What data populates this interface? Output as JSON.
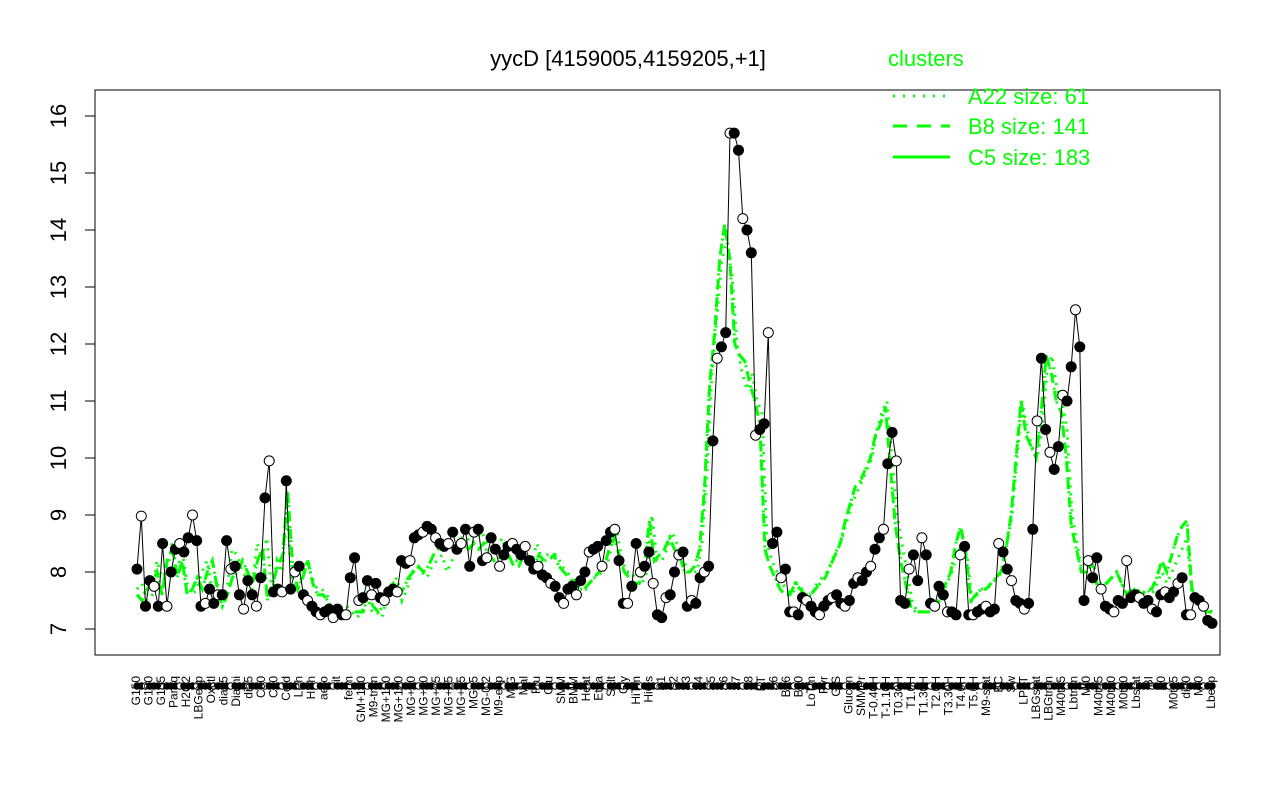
{
  "chart_data": {
    "type": "line",
    "title": "yycD [4159005,4159205,+1]",
    "xlabel": "",
    "ylabel": "",
    "ylim": [
      7,
      16
    ],
    "yticks": [
      7,
      8,
      9,
      10,
      11,
      12,
      13,
      14,
      15,
      16
    ],
    "grid": false,
    "legend": {
      "title": "clusters",
      "placement": "top-right",
      "color": "#00ff00",
      "entries": [
        {
          "label": "A22 size: 61",
          "style": "dotted"
        },
        {
          "label": "B8 size: 141",
          "style": "dashed"
        },
        {
          "label": "C5 size: 183",
          "style": "solid"
        }
      ]
    },
    "x_tick_labels": [
      "G150",
      "G180",
      "G135",
      "Paraq",
      "H2O2",
      "LBGexp",
      "Oxctl",
      "dia15",
      "Diami",
      "dia5",
      "C90",
      "C30",
      "Cold",
      "LPh",
      "HPh",
      "aero",
      "nit",
      "ferm",
      "GM+150",
      "M9-tran",
      "MG+150",
      "MG+120",
      "MG+90",
      "MG+60",
      "MG+45",
      "MG+25",
      "MG+15",
      "MG+5",
      "MG-0.2",
      "M9-exp",
      "M/G",
      "Mal",
      "Fru",
      "Glu",
      "SMM",
      "BMM",
      "Heat",
      "Etha",
      "Salt",
      "Gly",
      "HiTm",
      "HiOs",
      "S1",
      "S2",
      "S3",
      "S4",
      "S5",
      "S6",
      "S7",
      "S8",
      "BT",
      "S6",
      "B36",
      "B60",
      "LoTm",
      "Pyr",
      "G/S",
      "Glucon",
      "SMMPr",
      "T-0.40H",
      "T-1.10H",
      "T0.30H",
      "T1.0H",
      "T1.30H",
      "T2.0H",
      "T3.30H",
      "T4.0H",
      "T5.0H",
      "M9-stat",
      "BC",
      "Sw",
      "LPhT",
      "LBGstat",
      "LBGtran",
      "M40t45",
      "Lbtran",
      "Mt0",
      "M40t45",
      "M40t90",
      "M0t90",
      "Lbstat",
      "BI",
      "S0",
      "M0t45",
      "dia0",
      "Mt0",
      "Lbexp"
    ],
    "series": [
      {
        "name": "",
        "values": [
          8.05,
          8.98,
          7.4,
          7.85,
          7.75,
          7.4,
          8.5,
          7.4,
          8.0,
          8.4,
          8.5,
          8.35,
          8.6,
          9.0,
          8.55,
          7.4,
          7.45,
          7.7,
          7.45,
          7.6,
          7.6,
          8.55,
          8.05,
          8.1,
          7.6,
          7.35,
          7.85,
          7.6,
          7.4,
          7.9,
          9.3,
          9.95,
          7.65,
          7.7,
          7.65,
          9.6,
          7.7,
          8.0,
          8.1,
          7.6,
          7.5,
          7.4,
          7.3,
          7.25,
          7.3,
          7.35,
          7.2,
          7.35,
          7.25,
          7.25,
          7.9,
          8.25,
          7.5,
          7.55,
          7.85,
          7.6,
          7.8,
          7.55,
          7.5,
          7.65,
          7.7,
          7.65,
          8.2,
          8.15,
          8.2,
          8.6,
          8.65,
          8.7,
          8.8,
          8.75,
          8.6,
          8.5,
          8.45,
          8.5,
          8.7,
          8.4,
          8.5,
          8.75,
          8.1,
          8.7,
          8.75,
          8.2,
          8.25,
          8.6,
          8.4,
          8.1,
          8.3,
          8.45,
          8.5,
          8.4,
          8.3,
          8.45,
          8.2,
          8.05,
          8.1,
          7.95,
          7.9,
          7.8,
          7.75,
          7.55,
          7.45,
          7.7,
          7.75,
          7.6,
          7.85,
          8.0,
          8.35,
          8.4,
          8.45,
          8.1,
          8.55,
          8.7,
          8.75,
          8.2,
          7.45,
          7.45,
          7.75,
          8.5,
          8.0,
          8.1,
          8.35,
          7.8,
          7.25,
          7.2,
          7.55,
          7.6,
          8.0,
          8.3,
          8.35,
          7.4,
          7.5,
          7.45,
          7.9,
          8.0,
          8.1,
          10.3,
          11.75,
          11.95,
          12.2,
          15.7,
          15.7,
          15.4,
          14.2,
          14.0,
          13.6,
          10.4,
          10.5,
          10.6,
          12.2,
          8.5,
          8.7,
          7.9,
          8.05,
          7.3,
          7.3,
          7.25,
          7.55,
          7.5,
          7.4,
          7.3,
          7.25,
          7.4,
          7.5,
          7.55,
          7.6,
          7.45,
          7.4,
          7.5,
          7.8,
          7.9,
          7.85,
          8.0,
          8.1,
          8.4,
          8.6,
          8.75,
          9.9,
          10.45,
          9.95,
          7.5,
          7.45,
          8.05,
          8.3,
          7.85,
          8.6,
          8.3,
          7.45,
          7.4,
          7.75,
          7.6,
          7.3,
          7.3,
          7.25,
          8.3,
          8.45,
          7.25,
          7.25,
          7.3,
          7.35,
          7.4,
          7.3,
          7.35,
          8.5,
          8.35,
          8.05,
          7.85,
          7.5,
          7.45,
          7.35,
          7.45,
          8.75,
          10.65,
          11.75,
          10.5,
          10.1,
          9.8,
          10.2,
          11.1,
          11.0,
          11.6,
          12.6,
          11.95,
          7.5,
          8.2,
          7.9,
          8.25,
          7.7,
          7.4,
          7.35,
          7.3,
          7.5,
          7.45,
          8.2,
          7.55,
          7.6,
          7.55,
          7.45,
          7.5,
          7.35,
          7.3,
          7.6,
          7.65,
          7.55,
          7.65,
          7.8,
          7.9,
          7.25,
          7.25,
          7.55,
          7.5,
          7.4,
          7.15,
          7.1
        ]
      },
      {
        "name": "",
        "values": [
          7.7,
          7.8,
          7.5,
          7.6,
          8.2,
          7.9,
          8.0,
          8.5,
          8.0,
          8.4,
          7.8,
          7.6,
          7.7,
          8.0,
          8.2,
          7.7,
          7.8,
          7.6,
          7.7,
          8.4,
          8.3,
          8.0,
          7.9,
          7.7,
          8.5,
          8.3,
          8.6,
          7.6,
          8.2,
          8.0,
          9.1,
          7.8,
          7.7,
          7.9,
          8.2,
          7.9,
          7.7,
          7.7,
          7.6,
          7.3,
          7.4,
          7.3,
          7.4,
          7.3,
          7.2,
          7.3,
          7.6,
          7.3,
          7.3,
          7.2,
          7.6,
          7.8,
          7.9,
          7.5,
          7.7,
          8.0,
          8.1,
          8.0,
          7.9,
          8.1,
          8.2,
          8.3,
          8.0,
          8.2,
          8.5,
          8.6,
          8.6,
          8.5,
          8.6,
          8.7,
          8.5,
          8.5,
          8.4,
          8.6,
          8.3,
          8.2,
          8.2,
          8.4,
          8.3,
          8.2,
          8.5,
          8.2,
          8.3,
          8.3,
          8.3,
          8.1,
          8.0,
          7.9,
          7.8,
          7.7,
          7.7,
          7.9,
          7.9,
          8.0,
          8.1,
          8.5,
          8.7,
          8.2,
          8.0,
          8.0,
          7.8,
          7.8,
          8.0,
          9.0,
          8.2,
          8.2,
          8.4,
          8.7,
          8.5,
          8.4,
          8.0,
          8.0,
          8.0,
          8.5,
          9.8,
          11.5,
          12.5,
          13.5,
          13.8,
          13.2,
          12.0,
          11.5,
          11.2,
          11.5,
          11.0,
          10.8,
          8.5,
          8.2,
          8.0,
          7.8,
          7.7,
          7.6,
          7.8,
          7.7,
          7.6,
          7.6,
          7.8,
          7.9,
          8.0,
          8.2,
          8.4,
          8.6,
          8.9,
          9.2,
          9.4,
          9.6,
          9.8,
          10.0,
          10.5,
          10.8,
          11.0,
          10.0,
          9.0,
          8.5,
          8.0,
          7.5,
          7.3,
          7.3,
          7.3,
          7.3,
          7.4,
          7.6,
          7.8,
          8.0,
          8.3,
          8.5,
          8.3,
          7.5,
          7.6,
          7.7,
          7.7,
          7.8,
          7.9,
          8.0,
          8.5,
          9.0,
          10.0,
          11.0,
          10.5,
          10.2,
          10.0,
          10.5,
          11.5,
          11.8,
          11.2,
          11.0,
          10.5,
          9.0,
          8.5,
          8.0,
          8.2,
          8.3,
          7.8,
          7.8,
          7.8,
          7.9,
          8.0,
          7.8,
          7.6,
          7.7,
          7.7,
          7.6,
          7.7,
          7.6,
          7.8,
          8.0,
          7.8,
          8.0,
          8.2,
          8.4,
          8.6,
          7.6,
          7.5,
          7.5,
          7.4,
          7.3
        ]
      },
      {
        "name": "",
        "values": [
          7.6,
          7.5,
          7.7,
          7.8,
          8.0,
          7.6,
          8.2,
          8.4,
          7.9,
          8.2,
          7.6,
          7.7,
          7.9,
          7.7,
          8.0,
          8.2,
          7.7,
          7.4,
          7.6,
          7.9,
          8.0,
          8.2,
          8.0,
          7.8,
          8.2,
          8.4,
          7.5,
          7.8,
          8.1,
          8.3,
          9.4,
          8.1,
          7.7,
          7.9,
          8.2,
          7.8,
          7.6,
          7.6,
          7.5,
          7.3,
          7.4,
          7.3,
          7.3,
          7.3,
          7.3,
          7.3,
          7.6,
          7.4,
          7.3,
          7.4,
          7.7,
          7.8,
          7.6,
          7.7,
          7.9,
          8.0,
          8.1,
          8.0,
          8.1,
          8.3,
          8.4,
          8.5,
          8.5,
          8.4,
          8.4,
          8.5,
          8.4,
          8.5,
          8.4,
          8.5,
          8.3,
          8.2,
          8.2,
          8.4,
          8.3,
          8.1,
          8.1,
          8.3,
          8.2,
          8.1,
          8.3,
          8.2,
          8.2,
          8.3,
          8.1,
          8.0,
          7.9,
          7.8,
          7.7,
          7.7,
          7.8,
          7.9,
          8.0,
          8.1,
          8.4,
          8.6,
          8.3,
          8.0,
          7.9,
          7.8,
          7.8,
          8.1,
          8.9,
          8.2,
          8.3,
          8.4,
          8.6,
          8.4,
          8.3,
          8.0,
          8.0,
          8.1,
          8.4,
          9.5,
          11.3,
          12.2,
          13.5,
          14.1,
          13.5,
          12.0,
          11.8,
          11.7,
          11.3,
          11.0,
          10.6,
          8.4,
          8.1,
          7.9,
          7.7,
          7.6,
          7.6,
          7.8,
          7.7,
          7.6,
          7.6,
          7.7,
          7.8,
          7.9,
          8.1,
          8.3,
          8.5,
          8.9,
          9.2,
          9.5,
          9.6,
          9.8,
          10.0,
          10.4,
          10.6,
          10.9,
          9.8,
          8.8,
          8.2,
          7.8,
          7.4,
          7.3,
          7.3,
          7.3,
          7.3,
          7.4,
          7.6,
          7.8,
          8.0,
          8.5,
          8.8,
          8.3,
          7.5,
          7.6,
          7.7,
          7.7,
          7.8,
          7.9,
          8.0,
          8.4,
          9.0,
          10.0,
          11.0,
          10.4,
          10.2,
          10.0,
          10.8,
          11.8,
          11.5,
          11.0,
          10.8,
          10.0,
          8.8,
          8.4,
          8.0,
          8.0,
          8.2,
          7.8,
          7.8,
          7.8,
          7.9,
          8.0,
          7.8,
          7.6,
          7.7,
          7.7,
          7.6,
          7.7,
          7.7,
          7.9,
          8.2,
          8.0,
          8.3,
          8.6,
          8.8,
          8.9,
          7.7,
          7.5,
          7.5,
          7.3,
          7.3
        ]
      }
    ]
  }
}
